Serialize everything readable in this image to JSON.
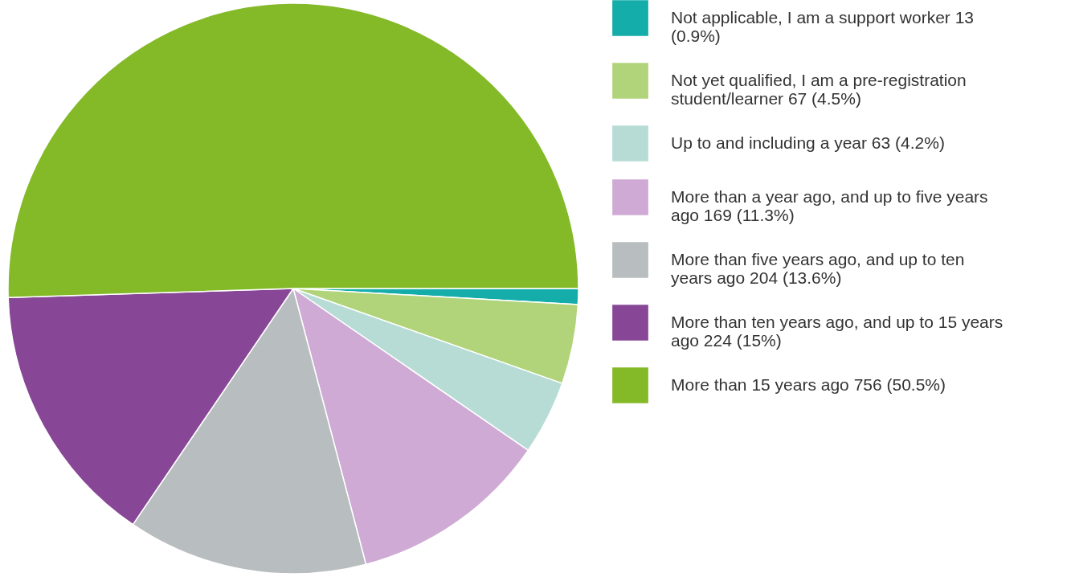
{
  "chart_data": {
    "type": "pie",
    "categories": [
      "Not applicable, I am a support worker 13 (0.9%)",
      "Not yet qualified, I am a pre-registration student/learner 67 (4.5%)",
      "Up to and including a year 63 (4.2%)",
      "More than a year ago, and up to five years ago 169 (11.3%)",
      "More than five years ago, and up to ten years ago 204 (13.6%)",
      "More than ten years ago, and up to 15 years ago 224 (15%)",
      "More than 15 years ago 756 (50.5%)"
    ],
    "values": [
      0.9,
      4.5,
      4.2,
      11.3,
      13.6,
      15,
      50.5
    ],
    "colors": [
      "#14ada9",
      "#b1d47a",
      "#b7dcd6",
      "#cfaad4",
      "#b8bdbf",
      "#874796",
      "#84b928"
    ],
    "legend": "right"
  }
}
